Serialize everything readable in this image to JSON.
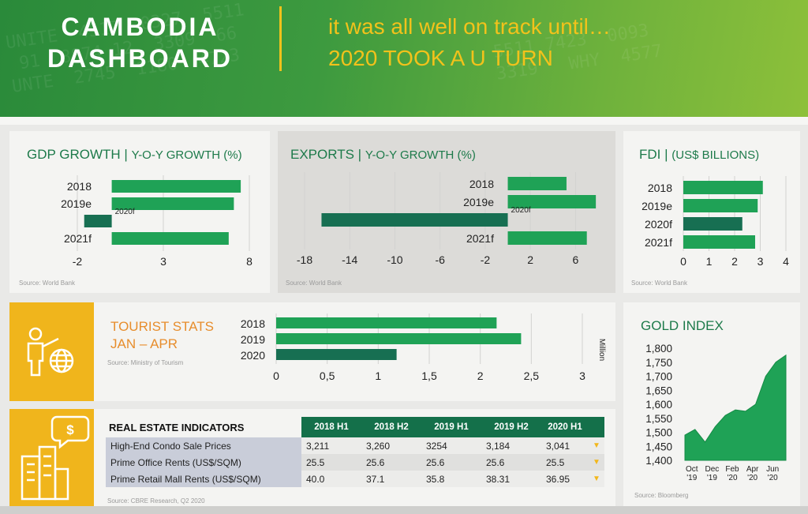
{
  "header": {
    "title_line1": "CAMBODIA",
    "title_line2": "DASHBOARD",
    "tagline_line1": "it was all well on track until…",
    "tagline_line2": "2020 TOOK A U TURN",
    "colors": {
      "green": "#2a8a3a",
      "yellow": "#f2c21b"
    }
  },
  "gdp": {
    "title": "GDP GROWTH",
    "subtitle": "Y-O-Y GROWTH (%)",
    "source": "Source: World Bank",
    "chart_data": {
      "type": "bar",
      "orientation": "horizontal",
      "categories": [
        "2018",
        "2019e",
        "2020f",
        "2021f"
      ],
      "values": [
        7.5,
        7.1,
        -1.6,
        6.8
      ],
      "xlim": [
        -2,
        8
      ],
      "xticks": [
        "-2",
        "3",
        "8"
      ],
      "category_labels_shown": [
        "2018",
        "2019e",
        "",
        "2021f"
      ],
      "inner_label": "2020f"
    }
  },
  "exports": {
    "title": "EXPORTS",
    "subtitle": "Y-O-Y GROWTH (%)",
    "source": "Source: World Bank",
    "chart_data": {
      "type": "bar",
      "orientation": "horizontal",
      "categories": [
        "2018",
        "2019e",
        "2020f",
        "2021f"
      ],
      "values": [
        5.2,
        7.8,
        -16.5,
        7.0
      ],
      "xlim": [
        -18,
        8
      ],
      "xticks": [
        "-18",
        "-14",
        "-10",
        "-6",
        "-2",
        "2",
        "6"
      ],
      "category_labels_shown": [
        "2018",
        "2019e",
        "",
        "2021f"
      ],
      "inner_label": "2020f"
    }
  },
  "fdi": {
    "title": "FDI",
    "subtitle": "(US$ BILLIONS)",
    "source": "Source: World Bank",
    "chart_data": {
      "type": "bar",
      "orientation": "horizontal",
      "categories": [
        "2018",
        "2019e",
        "2020f",
        "2021f"
      ],
      "values": [
        3.1,
        2.9,
        2.3,
        2.8
      ],
      "xlim": [
        0,
        4
      ],
      "xticks": [
        "0",
        "1",
        "2",
        "3",
        "4"
      ]
    }
  },
  "tourist": {
    "title_line1": "TOURIST STATS",
    "title_line2": "JAN – APR",
    "source": "Source: Ministry of Tourism",
    "chart_data": {
      "type": "bar",
      "orientation": "horizontal",
      "categories": [
        "2018",
        "2019",
        "2020"
      ],
      "values": [
        2.16,
        2.4,
        1.18
      ],
      "xlim": [
        0,
        3
      ],
      "xticks": [
        "0",
        "0,5",
        "1",
        "1,5",
        "2",
        "2,5",
        "3"
      ],
      "unit": "Million"
    }
  },
  "gold": {
    "title": "GOLD INDEX",
    "source": "Source: Bloomberg",
    "chart_data": {
      "type": "area",
      "x": [
        "Sep '19",
        "Oct '19",
        "Nov '19",
        "Dec '19",
        "Jan '20",
        "Feb '20",
        "Mar '20",
        "Apr '20",
        "May '20",
        "Jun '20",
        "Jul '20"
      ],
      "values": [
        1490,
        1510,
        1465,
        1520,
        1560,
        1580,
        1575,
        1600,
        1700,
        1750,
        1775
      ],
      "ylim": [
        1400,
        1800
      ],
      "yticks": [
        "1,800",
        "1,750",
        "1,700",
        "1,650",
        "1,600",
        "1,550",
        "1,500",
        "1,450",
        "1,400"
      ],
      "xtick_labels": [
        [
          "Oct",
          "'19"
        ],
        [
          "Dec",
          "'19"
        ],
        [
          "Feb",
          "'20"
        ],
        [
          "Apr",
          "'20"
        ],
        [
          "Jun",
          "'20"
        ]
      ]
    }
  },
  "real_estate": {
    "title": "REAL ESTATE INDICATORS",
    "source": "Source: CBRE Research, Q2 2020",
    "columns": [
      "2018 H1",
      "2018 H2",
      "2019 H1",
      "2019 H2",
      "2020 H1"
    ],
    "rows": [
      {
        "label": "High-End Condo Sale Prices",
        "values": [
          "3,211",
          "3,260",
          "3254",
          "3,184",
          "3,041"
        ],
        "trend": "▼"
      },
      {
        "label": "Prime Office Rents (US$/SQM)",
        "values": [
          "25.5",
          "25.6",
          "25.6",
          "25.6",
          "25.5"
        ],
        "trend": "▼"
      },
      {
        "label": "Prime Retail Mall Rents (US$/SQM)",
        "values": [
          "40.0",
          "37.1",
          "35.8",
          "38.31",
          "36.95"
        ],
        "trend": "▼"
      }
    ]
  },
  "colors": {
    "bar": "#1fa256",
    "bar_dark": "#176f52",
    "accent": "#f0b51c"
  }
}
